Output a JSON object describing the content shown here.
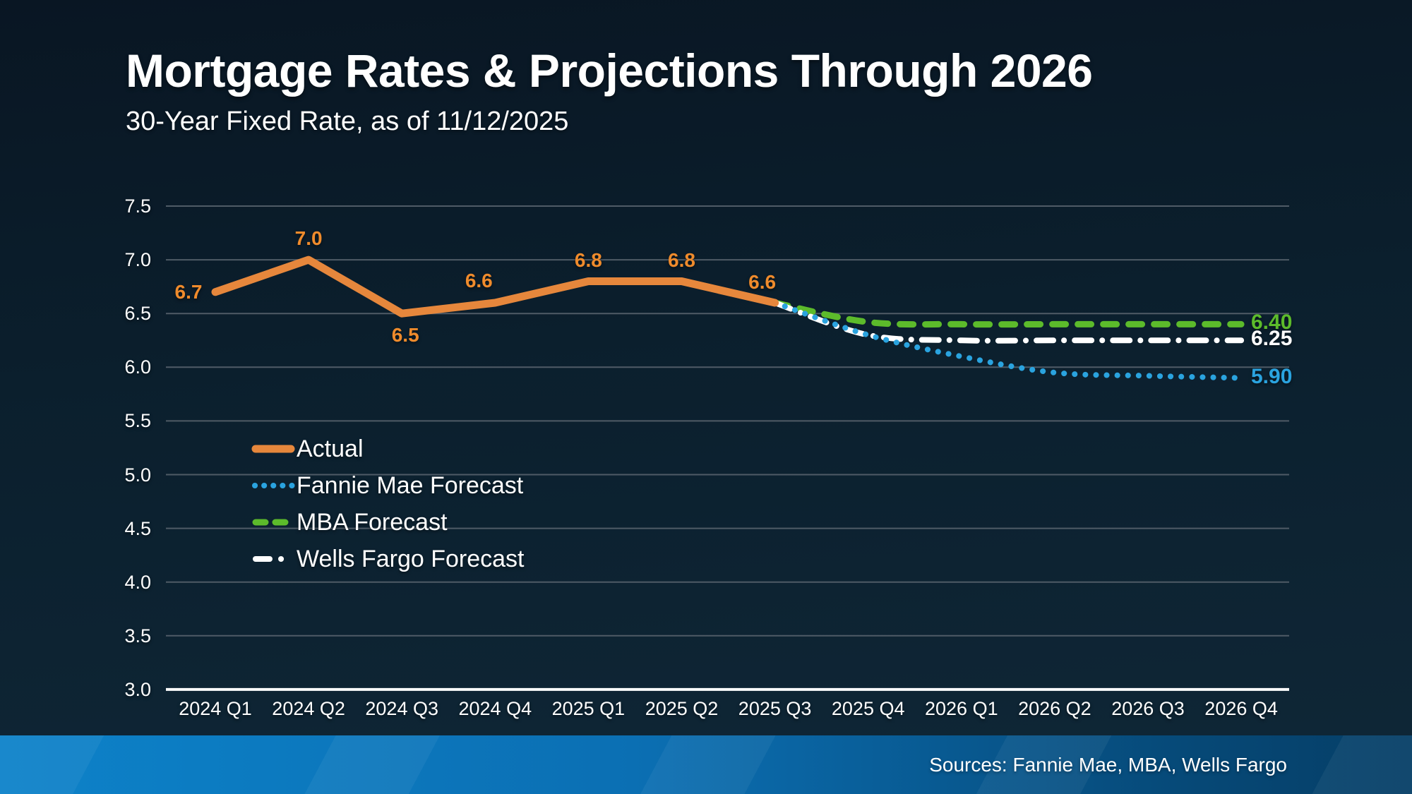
{
  "header": {
    "title": "Mortgage Rates & Projections Through 2026",
    "subtitle": "30-Year Fixed Rate, as of 11/12/2025"
  },
  "footer": {
    "sources": "Sources: Fannie Mae, MBA, Wells Fargo"
  },
  "colors": {
    "background_top": "#091623",
    "background_bottom": "#0f2737",
    "actual": "#E6873C",
    "actual_label": "#EF8B2C",
    "fannie": "#2AA3DF",
    "mba": "#5CBB2B",
    "wells": "#FFFFFF",
    "gridline": "#4F5B66",
    "axis": "#FFFFFF",
    "footer_left": "#0D82C9",
    "footer_right": "#053E66"
  },
  "chart_data": {
    "type": "line",
    "title": "Mortgage Rates & Projections Through 2026",
    "subtitle": "30-Year Fixed Rate, as of 11/12/2025",
    "categories": [
      "2024 Q1",
      "2024 Q2",
      "2024 Q3",
      "2024 Q4",
      "2025 Q1",
      "2025 Q2",
      "2025 Q3",
      "2025 Q4",
      "2026 Q1",
      "2026 Q2",
      "2026 Q3",
      "2026 Q4"
    ],
    "y_ticks": [
      "7.5",
      "7.0",
      "6.5",
      "6.0",
      "5.5",
      "5.0",
      "4.5",
      "4.0",
      "3.5",
      "3.0"
    ],
    "ylim": [
      3.0,
      7.5
    ],
    "grid": true,
    "legend_position": "inside-left",
    "series": [
      {
        "name": "Actual",
        "style": "solid",
        "color_key": "actual",
        "x_start_index": 0,
        "values": [
          6.7,
          7.0,
          6.5,
          6.6,
          6.8,
          6.8,
          6.6
        ],
        "point_labels": [
          "6.7",
          "7.0",
          "6.5",
          "6.6",
          "6.8",
          "6.8",
          "6.6"
        ]
      },
      {
        "name": "Fannie Mae Forecast",
        "style": "dotted",
        "color_key": "fannie",
        "x_start_index": 6,
        "values": [
          6.6,
          6.3,
          6.1,
          5.95,
          5.92,
          5.9
        ],
        "end_label": "5.90"
      },
      {
        "name": "MBA Forecast",
        "style": "dashed",
        "color_key": "mba",
        "x_start_index": 6,
        "values": [
          6.6,
          6.42,
          6.4,
          6.4,
          6.4,
          6.4
        ],
        "end_label": "6.40"
      },
      {
        "name": "Wells Fargo Forecast",
        "style": "dash-dot",
        "color_key": "wells",
        "x_start_index": 6,
        "values": [
          6.6,
          6.3,
          6.25,
          6.25,
          6.25,
          6.25
        ],
        "end_label": "6.25"
      }
    ]
  }
}
